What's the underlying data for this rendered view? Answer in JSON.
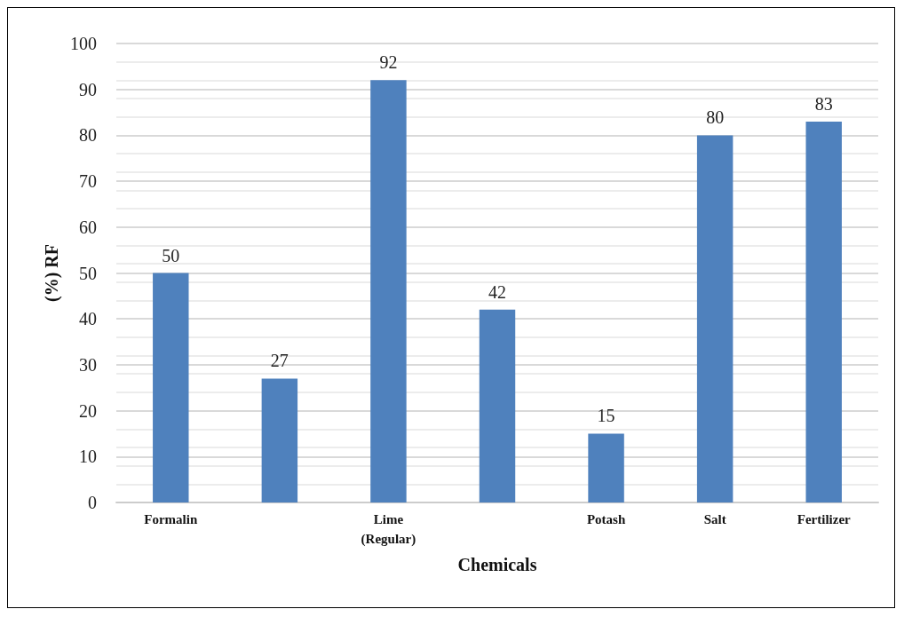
{
  "chart_data": {
    "type": "bar",
    "xlabel": "Chemicals",
    "ylabel": "(%) RF",
    "categories": [
      "Formalin",
      null,
      "Lime\n(Regular)",
      null,
      "Potash",
      "Salt",
      "Fertilizer"
    ],
    "values": [
      50,
      27,
      92,
      42,
      15,
      80,
      83
    ],
    "color": "#4f81bd",
    "ylim": [
      0,
      100
    ],
    "yticks": [
      0,
      10,
      20,
      30,
      40,
      50,
      60,
      70,
      80,
      90,
      100
    ],
    "grid": "y",
    "data_labels": true
  }
}
